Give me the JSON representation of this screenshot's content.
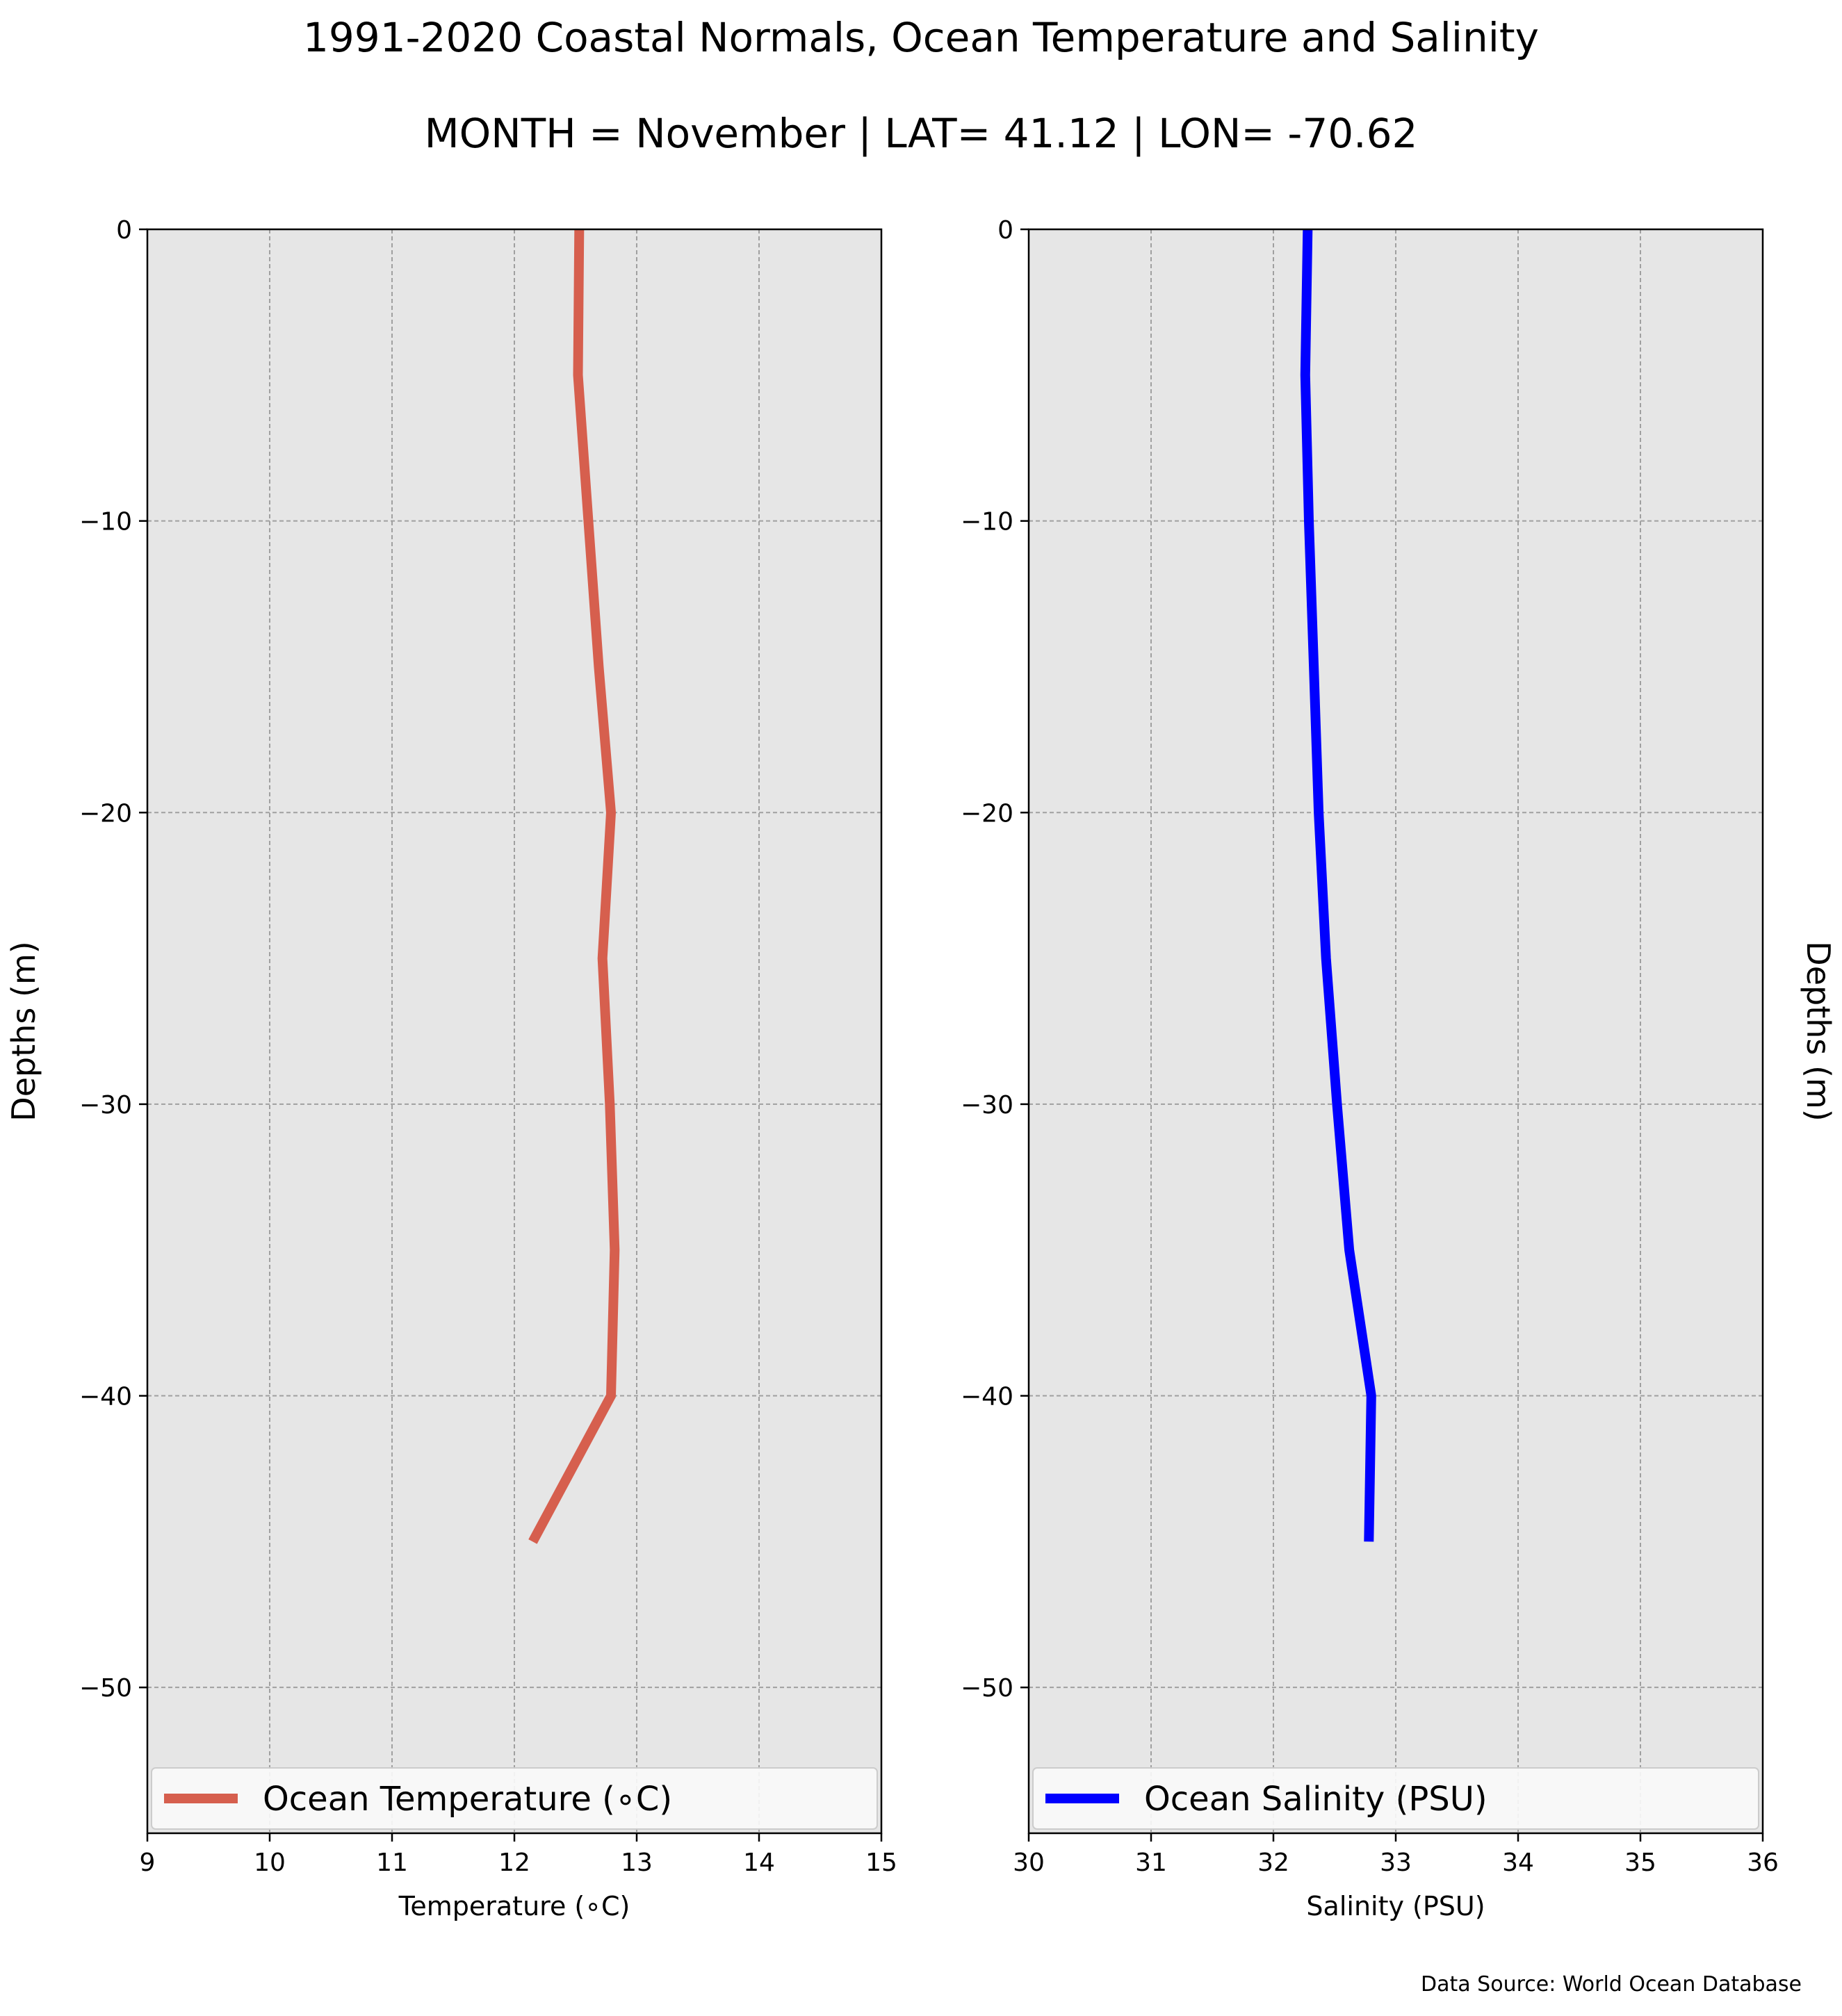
{
  "chart_data": [
    {
      "type": "line",
      "title": "1991-2020 Coastal Normals, Ocean Temperature and Salinity",
      "subtitle": "MONTH = November | LAT= 41.12 | LON= -70.62",
      "xlabel": "Temperature (∘C)",
      "ylabel": "Depths (m)",
      "xlim": [
        9,
        15
      ],
      "ylim": [
        -55,
        0
      ],
      "xticks": [
        "9",
        "10",
        "11",
        "12",
        "13",
        "14",
        "15"
      ],
      "yticks": [
        "0",
        "−10",
        "−20",
        "−30",
        "−40",
        "−50"
      ],
      "grid": true,
      "background": "#e6e6e6",
      "legend_position": "lower-center",
      "series": [
        {
          "name": "Ocean Temperature (∘C)",
          "color": "#d65f4e",
          "x": [
            12.53,
            12.52,
            12.69,
            12.79,
            12.72,
            12.78,
            12.82,
            12.79,
            12.15
          ],
          "y": [
            0,
            -5,
            -15,
            -20,
            -25,
            -30,
            -35,
            -40,
            -45
          ]
        }
      ]
    },
    {
      "type": "line",
      "xlabel": "Salinity (PSU)",
      "ylabel": "Depths (m)",
      "xlim": [
        30,
        36
      ],
      "ylim": [
        -55,
        0
      ],
      "xticks": [
        "30",
        "31",
        "32",
        "33",
        "34",
        "35",
        "36"
      ],
      "yticks": [
        "0",
        "−10",
        "−20",
        "−30",
        "−40",
        "−50"
      ],
      "grid": true,
      "background": "#e6e6e6",
      "legend_position": "lower-center",
      "series": [
        {
          "name": "Ocean Salinity (PSU)",
          "color": "#0000ff",
          "x": [
            32.28,
            32.26,
            32.29,
            32.33,
            32.37,
            32.43,
            32.52,
            32.62,
            32.8,
            32.78
          ],
          "y": [
            0,
            -5,
            -10,
            -15,
            -20,
            -25,
            -30,
            -35,
            -40,
            -45
          ]
        }
      ]
    }
  ],
  "footer": {
    "source": "Data Source: World Ocean Database"
  }
}
